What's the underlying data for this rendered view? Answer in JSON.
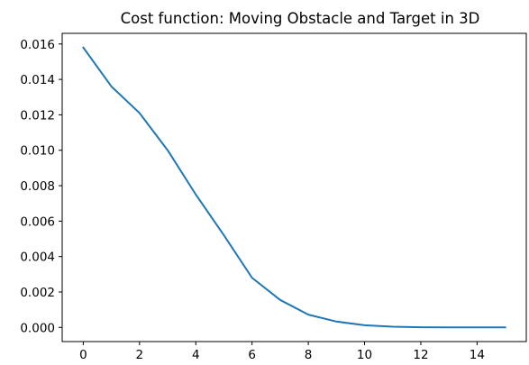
{
  "chart_data": {
    "type": "line",
    "title": "Cost function: Moving Obstacle and Target in 3D",
    "xlabel": "",
    "ylabel": "",
    "xlim": [
      -0.75,
      15.75
    ],
    "ylim": [
      -0.0008,
      0.0166
    ],
    "xticks": [
      0,
      2,
      4,
      6,
      8,
      10,
      12,
      14
    ],
    "xtick_labels": [
      "0",
      "2",
      "4",
      "6",
      "8",
      "10",
      "12",
      "14"
    ],
    "yticks": [
      0.0,
      0.002,
      0.004,
      0.006,
      0.008,
      0.01,
      0.012,
      0.014,
      0.016
    ],
    "ytick_labels": [
      "0.000",
      "0.002",
      "0.004",
      "0.006",
      "0.008",
      "0.010",
      "0.012",
      "0.014",
      "0.016"
    ],
    "grid": false,
    "x": [
      0,
      1,
      2,
      3,
      4,
      5,
      6,
      7,
      8,
      9,
      10,
      11,
      12,
      13,
      14,
      15
    ],
    "series": [
      {
        "values": [
          0.0158,
          0.0136,
          0.0121,
          0.01,
          0.0075,
          0.0052,
          0.0028,
          0.00155,
          0.00072,
          0.00033,
          0.00012,
          4e-05,
          1e-05,
          0.0,
          0.0,
          0.0
        ],
        "color": "#1f77b4"
      }
    ]
  }
}
